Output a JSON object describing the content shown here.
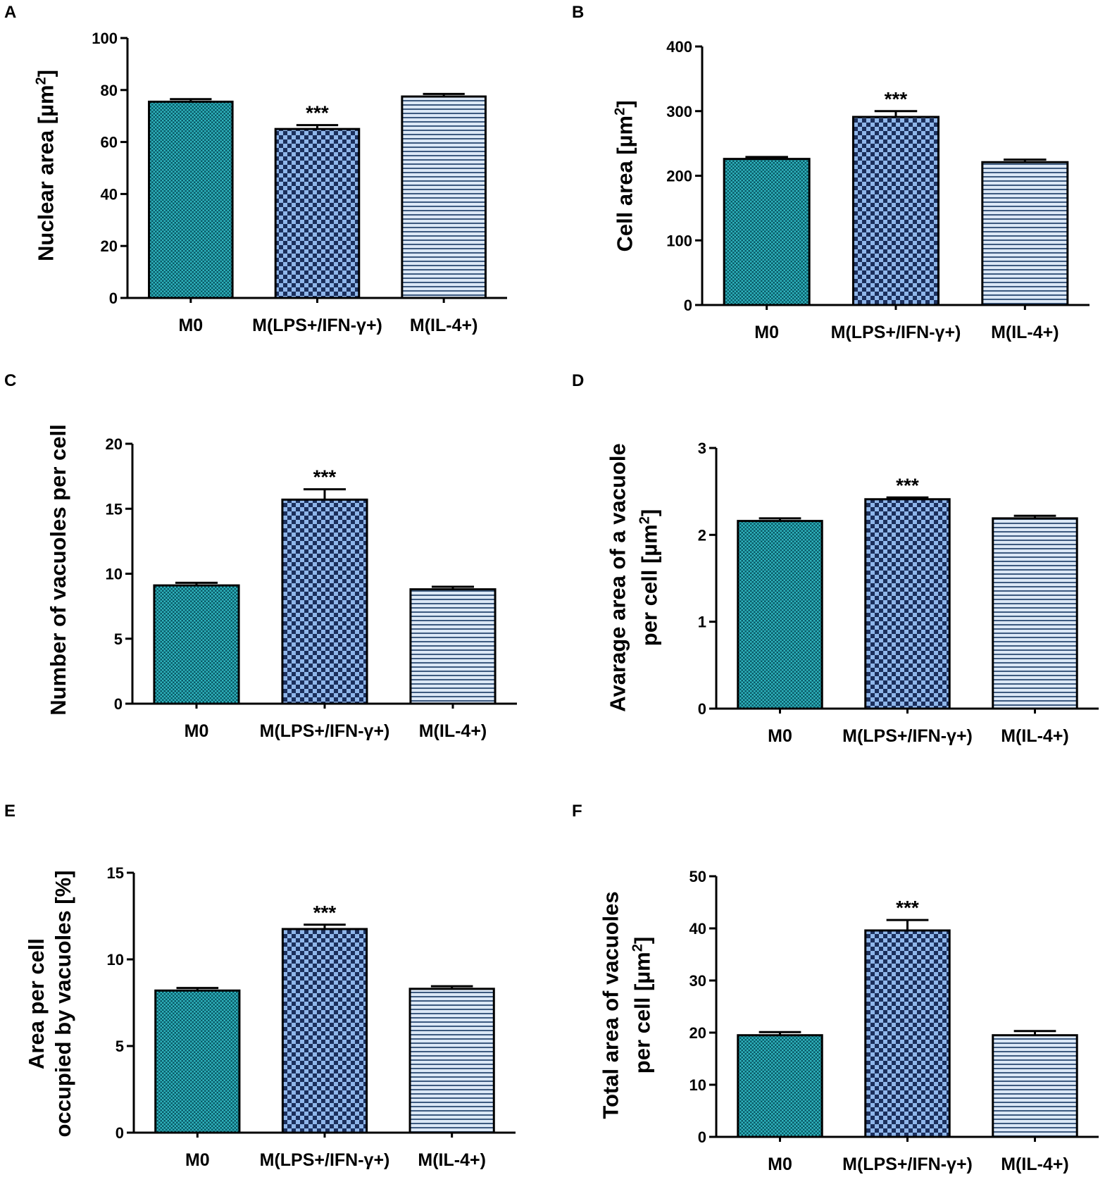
{
  "colors": {
    "m0_fill": "#0a5a66",
    "m0_pattern": "#2fb3bd",
    "lps_fill": "#8fb6ea",
    "lps_pattern": "#1b2f5c",
    "il4_fill": "#dce8f6",
    "il4_stripe": "#3d5a80",
    "axis": "#000000"
  },
  "chart_data": [
    {
      "panel": "A",
      "type": "bar",
      "ylabel": "Nuclear area [µm2]",
      "ylabel_html": [
        "Nuclear area [",
        "µ",
        "m",
        "2",
        "]"
      ],
      "categories": [
        "M0",
        "M(LPS+/IFN-γ+)",
        "M(IL-4+)"
      ],
      "values": [
        75.5,
        65,
        77.5
      ],
      "errors": [
        1,
        1.5,
        1
      ],
      "ylim": [
        0,
        100
      ],
      "yticks": [
        0,
        20,
        40,
        60,
        80,
        100
      ],
      "annotations": [
        "",
        "***",
        ""
      ]
    },
    {
      "panel": "B",
      "type": "bar",
      "ylabel": "Cell area [µm2]",
      "categories": [
        "M0",
        "M(LPS+/IFN-γ+)",
        "M(IL-4+)"
      ],
      "values": [
        226,
        291,
        221
      ],
      "errors": [
        3,
        9,
        4
      ],
      "ylim": [
        0,
        400
      ],
      "yticks": [
        0,
        100,
        200,
        300,
        400
      ],
      "annotations": [
        "",
        "***",
        ""
      ]
    },
    {
      "panel": "C",
      "type": "bar",
      "ylabel": "Number of vacuoles per cell",
      "categories": [
        "M0",
        "M(LPS+/IFN-γ+)",
        "M(IL-4+)"
      ],
      "values": [
        9.1,
        15.7,
        8.8
      ],
      "errors": [
        0.2,
        0.8,
        0.2
      ],
      "ylim": [
        0,
        20
      ],
      "yticks": [
        0,
        5,
        10,
        15,
        20
      ],
      "annotations": [
        "",
        "***",
        ""
      ]
    },
    {
      "panel": "D",
      "type": "bar",
      "ylabel": "Avarage area of a vacuole per cell [µm2]",
      "categories": [
        "M0",
        "M(LPS+/IFN-γ+)",
        "M(IL-4+)"
      ],
      "values": [
        2.16,
        2.41,
        2.19
      ],
      "errors": [
        0.03,
        0.02,
        0.03
      ],
      "ylim": [
        0,
        3
      ],
      "yticks": [
        0,
        1,
        2,
        3
      ],
      "annotations": [
        "",
        "***",
        ""
      ]
    },
    {
      "panel": "E",
      "type": "bar",
      "ylabel": "Area per cell occupied by vacuoles [%]",
      "categories": [
        "M0",
        "M(LPS+/IFN-γ+)",
        "M(IL-4+)"
      ],
      "values": [
        8.2,
        11.75,
        8.3
      ],
      "errors": [
        0.15,
        0.25,
        0.15
      ],
      "ylim": [
        0,
        15
      ],
      "yticks": [
        0,
        5,
        10,
        15
      ],
      "annotations": [
        "",
        "***",
        ""
      ]
    },
    {
      "panel": "F",
      "type": "bar",
      "ylabel": "Total area of vacuoles per cell [µm2]",
      "categories": [
        "M0",
        "M(LPS+/IFN-γ+)",
        "M(IL-4+)"
      ],
      "values": [
        19.5,
        39.6,
        19.5
      ],
      "errors": [
        0.6,
        2,
        0.8
      ],
      "ylim": [
        0,
        50
      ],
      "yticks": [
        0,
        10,
        20,
        30,
        40,
        50
      ],
      "annotations": [
        "",
        "***",
        ""
      ]
    }
  ],
  "labels": {
    "A": {
      "letter": "A",
      "line1_pre": "Nuclear area [",
      "mu": "µ",
      "unit": "m",
      "sup": "2",
      "post": "]"
    },
    "B": {
      "letter": "B",
      "line1_pre": "Cell area [",
      "mu": "µ",
      "unit": "m",
      "sup": "2",
      "post": "]"
    },
    "C": {
      "letter": "C",
      "line1": "Number of vacuoles per cell"
    },
    "D": {
      "letter": "D",
      "line1": "Avarage area of a vacuole",
      "line2_pre": "per cell [",
      "mu": "µ",
      "unit": "m",
      "sup": "2",
      "post": "]"
    },
    "E": {
      "letter": "E",
      "line1": "Area per cell",
      "line2": "occupied by vacuoles [%]"
    },
    "F": {
      "letter": "F",
      "line1": "Total area of vacuoles",
      "line2_pre": "per cell [",
      "mu": "µ",
      "unit": "m",
      "sup": "2",
      "post": "]"
    }
  }
}
